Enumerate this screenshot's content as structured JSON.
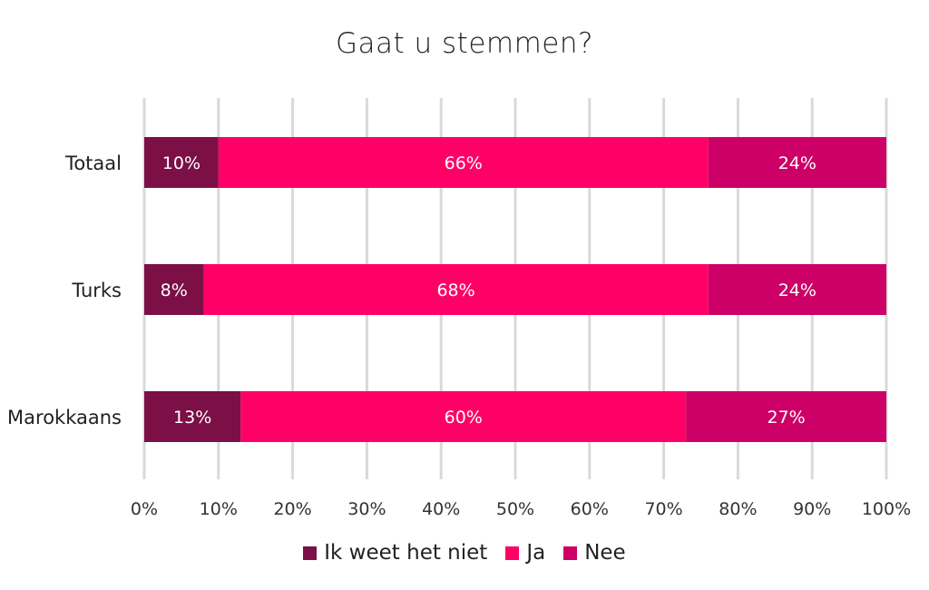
{
  "chart_data": {
    "type": "bar",
    "orientation": "horizontal",
    "stacked": true,
    "title": "Gaat u stemmen?",
    "categories": [
      "Totaal",
      "Turks",
      "Marokkaans"
    ],
    "series": [
      {
        "name": "Ik weet het niet",
        "values": [
          10,
          8,
          13
        ],
        "labels": [
          "10%",
          "8%",
          "13%"
        ],
        "color": "#7b0f46"
      },
      {
        "name": "Ja",
        "values": [
          66,
          68,
          60
        ],
        "labels": [
          "66%",
          "68%",
          "60%"
        ],
        "color": "#ff0066"
      },
      {
        "name": "Nee",
        "values": [
          24,
          24,
          27
        ],
        "labels": [
          "24%",
          "24%",
          "27%"
        ],
        "color": "#cc0066"
      }
    ],
    "xlim": [
      0,
      100
    ],
    "x_ticks": [
      "0%",
      "10%",
      "20%",
      "30%",
      "40%",
      "50%",
      "60%",
      "70%",
      "80%",
      "90%",
      "100%"
    ],
    "grid": true,
    "legend_position": "bottom"
  }
}
